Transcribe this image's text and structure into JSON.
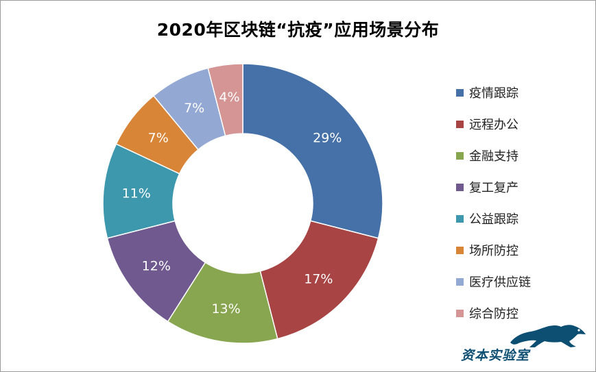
{
  "title": "2020年区块链“抗疫”应用场景分布",
  "chart_data": {
    "type": "pie",
    "donut": true,
    "title": "2020年区块链“抗疫”应用场景分布",
    "start_angle_deg": 0,
    "direction": "clockwise",
    "legend_position": "right",
    "slices": [
      {
        "label": "疫情跟踪",
        "value": 29,
        "display": "29%",
        "color": "#4571a8"
      },
      {
        "label": "远程办公",
        "value": 17,
        "display": "17%",
        "color": "#a84444"
      },
      {
        "label": "金融支持",
        "value": 13,
        "display": "13%",
        "color": "#88a64f"
      },
      {
        "label": "复工复产",
        "value": 12,
        "display": "12%",
        "color": "#70598f"
      },
      {
        "label": "公益跟踪",
        "value": 11,
        "display": "11%",
        "color": "#3d98ad"
      },
      {
        "label": "场所防控",
        "value": 7,
        "display": "7%",
        "color": "#d98538"
      },
      {
        "label": "医疗供应链",
        "value": 7,
        "display": "7%",
        "color": "#93a9d4"
      },
      {
        "label": "综合防控",
        "value": 4,
        "display": "4%",
        "color": "#d49594"
      }
    ]
  },
  "watermark": {
    "text": "资本实验室",
    "color": "#0c4f73"
  }
}
